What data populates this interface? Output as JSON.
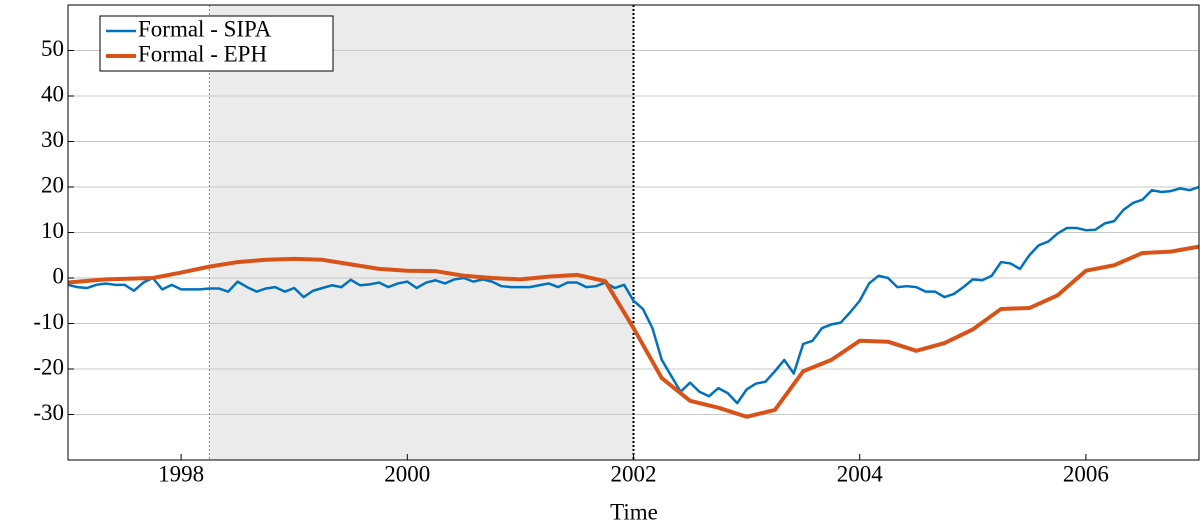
{
  "chart_data": {
    "type": "line",
    "x_label": "Time",
    "xlim": [
      1997,
      2007
    ],
    "xticks": [
      1998,
      2000,
      2002,
      2004,
      2006
    ],
    "ylim": [
      -40,
      60
    ],
    "yticks": [
      -30,
      -20,
      -10,
      0,
      10,
      20,
      30,
      40,
      50
    ],
    "grid": true,
    "legend": "upper left",
    "shaded_region": [
      1998.25,
      2002
    ],
    "vlines": [
      1998.25,
      2002
    ],
    "series": [
      {
        "name": "Formal - SIPA",
        "color": "#0072bd",
        "x": [
          1997,
          1997.083,
          1997.167,
          1997.25,
          1997.333,
          1997.417,
          1997.5,
          1997.583,
          1997.667,
          1997.75,
          1997.833,
          1997.917,
          1998,
          1998.083,
          1998.167,
          1998.25,
          1998.333,
          1998.417,
          1998.5,
          1998.583,
          1998.667,
          1998.75,
          1998.833,
          1998.917,
          1999,
          1999.083,
          1999.167,
          1999.25,
          1999.333,
          1999.417,
          1999.5,
          1999.583,
          1999.667,
          1999.75,
          1999.833,
          1999.917,
          2000,
          2000.083,
          2000.167,
          2000.25,
          2000.333,
          2000.417,
          2000.5,
          2000.583,
          2000.667,
          2000.75,
          2000.833,
          2000.917,
          2001,
          2001.083,
          2001.167,
          2001.25,
          2001.333,
          2001.417,
          2001.5,
          2001.583,
          2001.667,
          2001.75,
          2001.833,
          2001.917,
          2002,
          2002.083,
          2002.167,
          2002.25,
          2002.333,
          2002.417,
          2002.5,
          2002.583,
          2002.667,
          2002.75,
          2002.833,
          2002.917,
          2003,
          2003.083,
          2003.167,
          2003.25,
          2003.333,
          2003.417,
          2003.5,
          2003.583,
          2003.667,
          2003.75,
          2003.833,
          2003.917,
          2004,
          2004.083,
          2004.167,
          2004.25,
          2004.333,
          2004.417,
          2004.5,
          2004.583,
          2004.667,
          2004.75,
          2004.833,
          2004.917,
          2005,
          2005.083,
          2005.167,
          2005.25,
          2005.333,
          2005.417,
          2005.5,
          2005.583,
          2005.667,
          2005.75,
          2005.833,
          2005.917,
          2006,
          2006.083,
          2006.167,
          2006.25,
          2006.333,
          2006.417,
          2006.5,
          2006.583,
          2006.667,
          2006.75,
          2006.833,
          2006.917,
          2007
        ],
        "values": [
          -1.5,
          -2,
          -2.2,
          -1.5,
          -1.2,
          -1.5,
          -1.5,
          -2.8,
          -1,
          0,
          -2.5,
          -1.5,
          -2.5,
          -2.5,
          -2.5,
          -2.3,
          -2.3,
          -3,
          -0.8,
          -2,
          -3,
          -2.3,
          -2,
          -3,
          -2.2,
          -4.2,
          -2.8,
          -2.2,
          -1.6,
          -2,
          -0.4,
          -1.6,
          -1.4,
          -1,
          -2,
          -1.2,
          -0.8,
          -2.2,
          -1,
          -0.5,
          -1.2,
          -0.3,
          0,
          -0.8,
          -0.3,
          -0.8,
          -1.8,
          -2,
          -2,
          -2,
          -1.6,
          -1.2,
          -2,
          -1,
          -1,
          -2,
          -1.8,
          -1,
          -2.2,
          -1.5,
          -5,
          -6.8,
          -11,
          -18,
          -21.5,
          -25,
          -23,
          -25,
          -26,
          -24.2,
          -25.3,
          -27.5,
          -24.5,
          -23.2,
          -22.8,
          -20.5,
          -18,
          -21,
          -14.5,
          -13.8,
          -11,
          -10.2,
          -9.8,
          -7.5,
          -5,
          -1.2,
          0.5,
          0,
          -2,
          -1.8,
          -2,
          -3,
          -3,
          -4.2,
          -3.5,
          -2,
          -0.3,
          -0.5,
          0.5,
          3.5,
          3.2,
          2,
          5,
          7.2,
          8,
          9.8,
          11,
          11,
          10.5,
          10.6,
          12,
          12.5,
          15,
          16.5,
          17.2,
          19.3,
          18.9,
          19.1,
          19.7,
          19.3,
          20
        ]
      },
      {
        "name": "Formal - EPH",
        "color": "#d95319",
        "x": [
          1997,
          1997.33,
          1997.75,
          1998,
          1998.25,
          1998.5,
          1998.75,
          1999,
          1999.25,
          1999.5,
          1999.75,
          2000,
          2000.25,
          2000.5,
          2000.75,
          2001,
          2001.25,
          2001.5,
          2001.75,
          2002,
          2002.25,
          2002.5,
          2002.75,
          2003,
          2003.25,
          2003.5,
          2003.75,
          2004,
          2004.25,
          2004.5,
          2004.75,
          2005,
          2005.25,
          2005.5,
          2005.75,
          2006,
          2006.25,
          2006.5,
          2006.75,
          2007
        ],
        "values": [
          -1,
          -0.3,
          0,
          1.2,
          2.5,
          3.5,
          4,
          4.2,
          4,
          3,
          2,
          1.6,
          1.5,
          0.5,
          0,
          -0.3,
          0.3,
          0.7,
          -0.7,
          -11,
          -22,
          -27,
          -28.5,
          -30.5,
          -29,
          -20.5,
          -18,
          -13.8,
          -14,
          -16,
          -14.3,
          -11.3,
          -6.8,
          -6.6,
          -3.8,
          1.6,
          2.8,
          5.5,
          5.8,
          6.9
        ]
      }
    ]
  }
}
